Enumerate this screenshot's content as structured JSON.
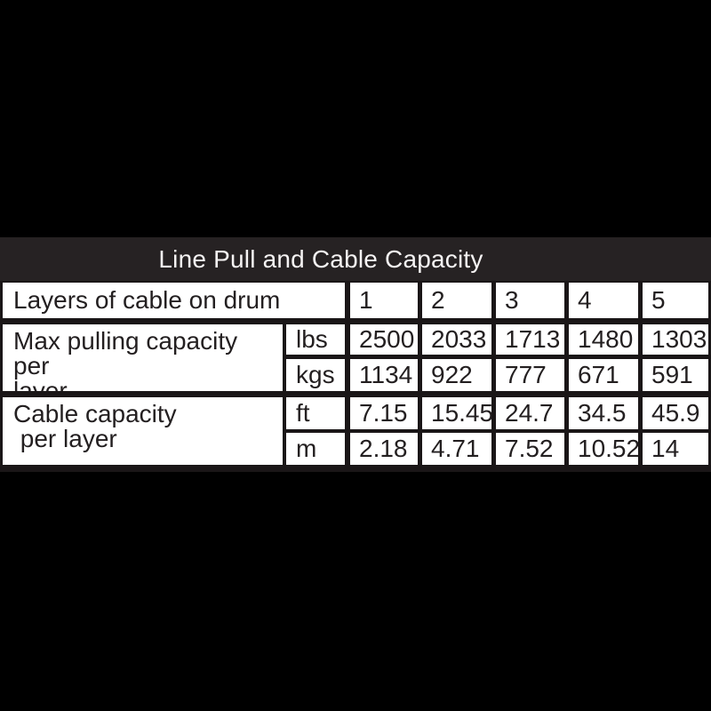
{
  "colors": {
    "page_background": "#000000",
    "title_band_background": "#262223",
    "title_text": "#f5f3f3",
    "grid_lines": "#1a1617",
    "cell_background": "#ffffff",
    "cell_text": "#231f20"
  },
  "title_bar": {
    "title": "Line Pull and Cable Capacity"
  },
  "table": {
    "layers_row": {
      "label": "Layers of cable on drum",
      "values": [
        "1",
        "2",
        "3",
        "4",
        "5"
      ]
    },
    "groups": [
      {
        "label": "Max pulling capacity per\nlayer",
        "rows": [
          {
            "unit": "lbs",
            "values": [
              "2500",
              "2033",
              "1713",
              "1480",
              "1303"
            ]
          },
          {
            "unit": "kgs",
            "values": [
              "1134",
              "922",
              "777",
              "671",
              "591"
            ]
          }
        ]
      },
      {
        "label": "Cable capacity\n per layer",
        "rows": [
          {
            "unit": "ft",
            "values": [
              "7.15",
              "15.45",
              "24.7",
              "34.5",
              "45.9"
            ]
          },
          {
            "unit": "m",
            "values": [
              "2.18",
              "4.71",
              "7.52",
              "10.52",
              "14"
            ]
          }
        ]
      }
    ]
  }
}
